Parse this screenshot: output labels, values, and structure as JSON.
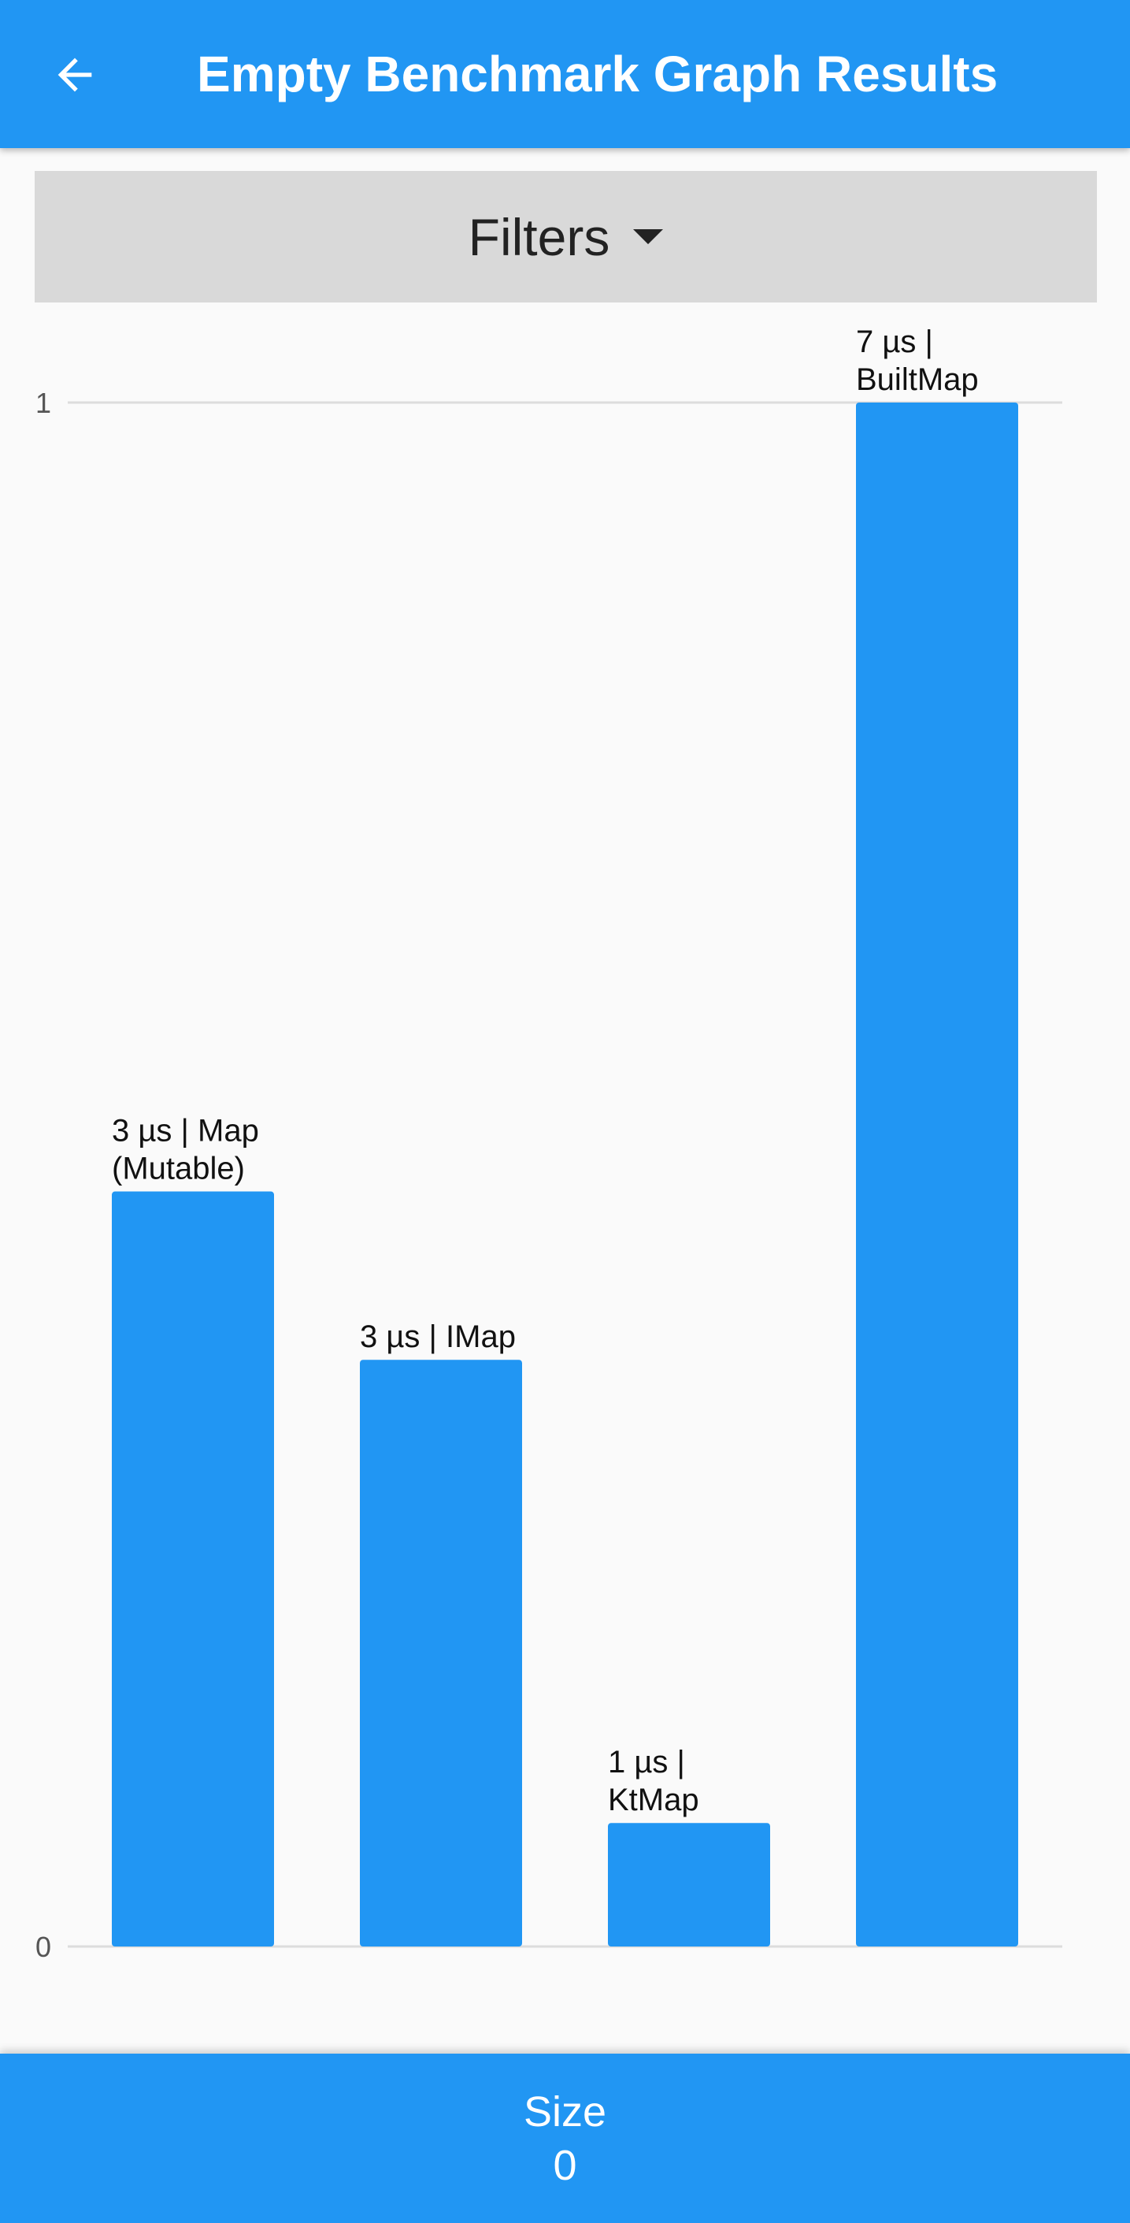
{
  "app_bar": {
    "title": "Empty Benchmark Graph Results",
    "back_icon": "arrow-left-icon"
  },
  "filters": {
    "label": "Filters",
    "icon": "caret-down-icon"
  },
  "colors": {
    "accent": "#2196f3",
    "background": "#fafafa",
    "filters_bg": "#d9d9d9",
    "gridline": "#dcdcdc"
  },
  "chart_data": {
    "type": "bar",
    "title": "",
    "xlabel": "",
    "ylabel": "",
    "ylim": [
      0,
      1
    ],
    "yticks": [
      "0",
      "1"
    ],
    "grid": true,
    "categories": [
      "Map (Mutable)",
      "IMap",
      "KtMap",
      "BuiltMap"
    ],
    "values": [
      0.489,
      0.38,
      0.08,
      1.0
    ],
    "labels": [
      [
        "3 µs | Map",
        "(Mutable)"
      ],
      [
        "3 µs | IMap"
      ],
      [
        "1 µs |",
        "KtMap"
      ],
      [
        "7 µs |",
        "BuiltMap"
      ]
    ]
  },
  "bottom_bar": {
    "label": "Size",
    "value": "0"
  }
}
